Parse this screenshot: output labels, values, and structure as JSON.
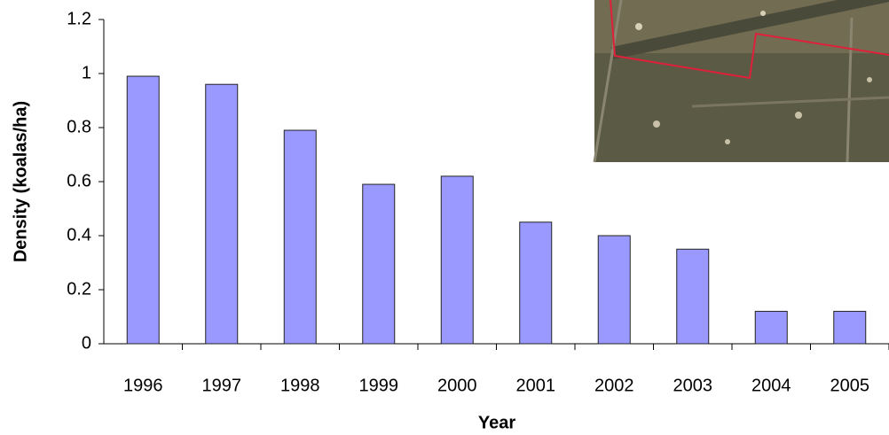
{
  "chart_data": {
    "type": "bar",
    "x_label": "Year",
    "y_label": "Density (koalas/ha)",
    "categories": [
      "1996",
      "1997",
      "1998",
      "1999",
      "2000",
      "2001",
      "2002",
      "2003",
      "2004",
      "2005"
    ],
    "values": [
      0.99,
      0.96,
      0.79,
      0.59,
      0.62,
      0.45,
      0.4,
      0.35,
      0.12,
      0.12
    ],
    "color": "#9999ff",
    "ylim": [
      0,
      1.2
    ],
    "yticks": [
      0,
      0.2,
      0.4,
      0.6,
      0.8,
      1,
      1.2
    ],
    "grid": false
  }
}
